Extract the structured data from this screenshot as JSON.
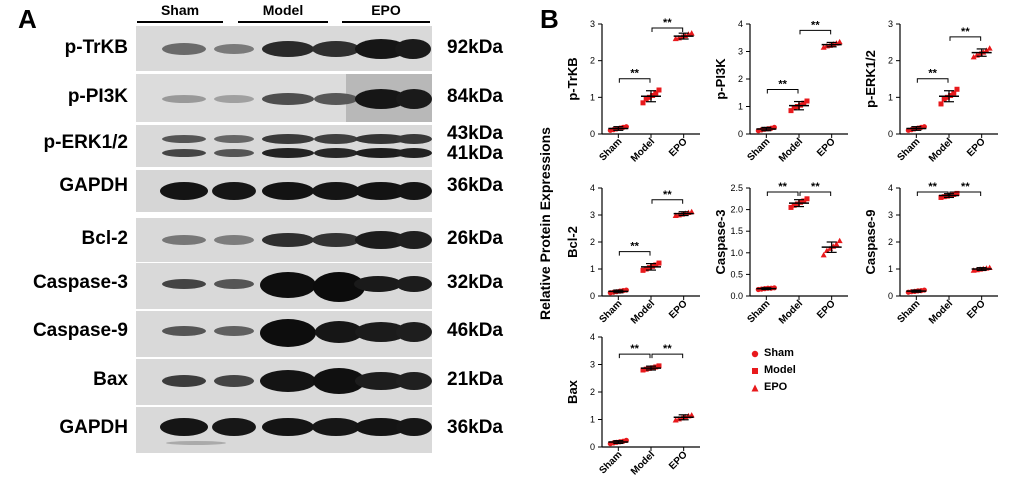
{
  "panelA": {
    "letter": "A",
    "groups": [
      "Sham",
      "Model",
      "EPO"
    ],
    "rows": [
      {
        "label": "p-TrKB",
        "kda": [
          "92kDa"
        ]
      },
      {
        "label": "p-PI3K",
        "kda": [
          "84kDa"
        ]
      },
      {
        "label": "p-ERK1/2",
        "kda": [
          "43kDa",
          "41kDa"
        ]
      },
      {
        "label": "GAPDH",
        "kda": [
          "36kDa"
        ]
      },
      {
        "label": "Bcl-2",
        "kda": [
          "26kDa"
        ]
      },
      {
        "label": "Caspase-3",
        "kda": [
          "32kDa"
        ]
      },
      {
        "label": "Caspase-9",
        "kda": [
          "46kDa"
        ]
      },
      {
        "label": "Bax",
        "kda": [
          "21kDa"
        ]
      },
      {
        "label": "GAPDH",
        "kda": [
          "36kDa"
        ]
      }
    ]
  },
  "panelB": {
    "letter": "B",
    "common_ylabel": "Relative Protein Expressions",
    "legend": [
      {
        "name": "Sham",
        "marker": "circle"
      },
      {
        "name": "Model",
        "marker": "square"
      },
      {
        "name": "EPO",
        "marker": "triangle"
      }
    ],
    "colors": {
      "points": "#e8191c",
      "axis": "#000000"
    }
  },
  "chart_data": [
    {
      "type": "scatter",
      "ylabel": "p-TrKB",
      "categories": [
        "Sham",
        "Model",
        "EPO"
      ],
      "ylim": [
        0,
        3
      ],
      "yticks": [
        0,
        1,
        2,
        3
      ],
      "means": [
        0.15,
        1.03,
        2.67
      ],
      "sd": [
        0.05,
        0.15,
        0.08
      ],
      "points": [
        [
          0.1,
          0.12,
          0.14,
          0.16,
          0.18,
          0.2
        ],
        [
          0.85,
          0.95,
          1.0,
          1.05,
          1.12,
          1.2
        ],
        [
          2.6,
          2.62,
          2.65,
          2.68,
          2.72,
          2.75
        ]
      ],
      "significance": [
        {
          "from": 0,
          "to": 1,
          "label": "**"
        },
        {
          "from": 1,
          "to": 2,
          "label": "**"
        }
      ]
    },
    {
      "type": "scatter",
      "ylabel": "p-PI3K",
      "categories": [
        "Sham",
        "Model",
        "EPO"
      ],
      "ylim": [
        0,
        4
      ],
      "yticks": [
        0,
        1,
        2,
        3,
        4
      ],
      "means": [
        0.18,
        1.03,
        3.25
      ],
      "sd": [
        0.06,
        0.15,
        0.08
      ],
      "points": [
        [
          0.12,
          0.15,
          0.17,
          0.19,
          0.21,
          0.24
        ],
        [
          0.85,
          0.95,
          1.0,
          1.05,
          1.12,
          1.2
        ],
        [
          3.15,
          3.2,
          3.22,
          3.27,
          3.3,
          3.35
        ]
      ],
      "significance": [
        {
          "from": 0,
          "to": 1,
          "label": "**"
        },
        {
          "from": 1,
          "to": 2,
          "label": "**"
        }
      ]
    },
    {
      "type": "scatter",
      "ylabel": "p-ERK1/2",
      "categories": [
        "Sham",
        "Model",
        "EPO"
      ],
      "ylim": [
        0,
        3
      ],
      "yticks": [
        0,
        1,
        2,
        3
      ],
      "means": [
        0.15,
        1.03,
        2.22
      ],
      "sd": [
        0.05,
        0.15,
        0.1
      ],
      "points": [
        [
          0.1,
          0.12,
          0.14,
          0.16,
          0.18,
          0.2
        ],
        [
          0.82,
          0.95,
          1.0,
          1.05,
          1.12,
          1.22
        ],
        [
          2.1,
          2.15,
          2.2,
          2.23,
          2.28,
          2.34
        ]
      ],
      "significance": [
        {
          "from": 0,
          "to": 1,
          "label": "**"
        },
        {
          "from": 1,
          "to": 2,
          "label": "**"
        }
      ]
    },
    {
      "type": "scatter",
      "ylabel": "Bcl-2",
      "categories": [
        "Sham",
        "Model",
        "EPO"
      ],
      "ylim": [
        0,
        4
      ],
      "yticks": [
        0,
        1,
        2,
        3,
        4
      ],
      "means": [
        0.17,
        1.08,
        3.05
      ],
      "sd": [
        0.05,
        0.12,
        0.07
      ],
      "points": [
        [
          0.12,
          0.14,
          0.16,
          0.18,
          0.2,
          0.22
        ],
        [
          0.95,
          1.0,
          1.05,
          1.1,
          1.15,
          1.22
        ],
        [
          2.98,
          3.0,
          3.03,
          3.06,
          3.09,
          3.12
        ]
      ],
      "significance": [
        {
          "from": 0,
          "to": 1,
          "label": "**"
        },
        {
          "from": 1,
          "to": 2,
          "label": "**"
        }
      ]
    },
    {
      "type": "scatter",
      "ylabel": "Caspase-3",
      "categories": [
        "Sham",
        "Model",
        "EPO"
      ],
      "ylim": [
        0,
        2.5
      ],
      "yticks": [
        0.0,
        0.5,
        1.0,
        1.5,
        2.0,
        2.5
      ],
      "means": [
        0.17,
        2.15,
        1.13
      ],
      "sd": [
        0.02,
        0.08,
        0.12
      ],
      "points": [
        [
          0.15,
          0.16,
          0.17,
          0.18,
          0.18,
          0.19
        ],
        [
          2.05,
          2.1,
          2.13,
          2.17,
          2.2,
          2.25
        ],
        [
          0.95,
          1.05,
          1.1,
          1.15,
          1.2,
          1.28
        ]
      ],
      "significance": [
        {
          "from": 0,
          "to": 1,
          "label": "**"
        },
        {
          "from": 1,
          "to": 2,
          "label": "**"
        }
      ]
    },
    {
      "type": "scatter",
      "ylabel": "Caspase-9",
      "categories": [
        "Sham",
        "Model",
        "EPO"
      ],
      "ylim": [
        0,
        4
      ],
      "yticks": [
        0,
        1,
        2,
        3,
        4
      ],
      "means": [
        0.18,
        3.72,
        1.0
      ],
      "sd": [
        0.04,
        0.07,
        0.05
      ],
      "points": [
        [
          0.14,
          0.16,
          0.17,
          0.19,
          0.2,
          0.22
        ],
        [
          3.65,
          3.68,
          3.7,
          3.73,
          3.76,
          3.8
        ],
        [
          0.95,
          0.97,
          0.99,
          1.01,
          1.03,
          1.05
        ]
      ],
      "significance": [
        {
          "from": 0,
          "to": 1,
          "label": "**"
        },
        {
          "from": 1,
          "to": 2,
          "label": "**"
        }
      ]
    },
    {
      "type": "scatter",
      "ylabel": "Bax",
      "categories": [
        "Sham",
        "Model",
        "EPO"
      ],
      "ylim": [
        0,
        4
      ],
      "yticks": [
        0,
        1,
        2,
        3,
        4
      ],
      "means": [
        0.18,
        2.87,
        1.08
      ],
      "sd": [
        0.05,
        0.07,
        0.09
      ],
      "points": [
        [
          0.12,
          0.15,
          0.17,
          0.19,
          0.21,
          0.24
        ],
        [
          2.8,
          2.83,
          2.86,
          2.88,
          2.91,
          2.95
        ],
        [
          0.98,
          1.02,
          1.06,
          1.1,
          1.13,
          1.16
        ]
      ],
      "significance": [
        {
          "from": 0,
          "to": 1,
          "label": "**"
        },
        {
          "from": 1,
          "to": 2,
          "label": "**"
        }
      ]
    }
  ]
}
